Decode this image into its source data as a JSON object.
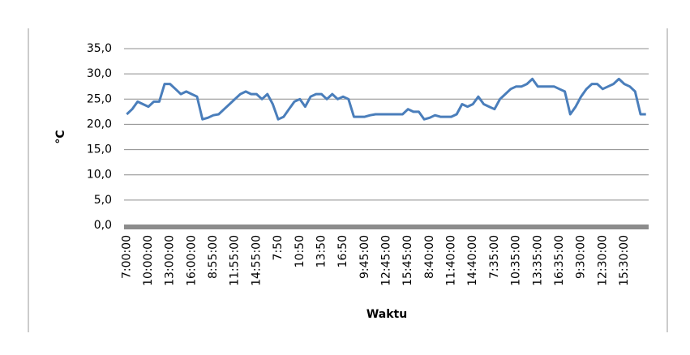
{
  "chart_data": {
    "type": "line",
    "y_label": "°C",
    "x_label": "Waktu",
    "categories": [
      "7:00:00",
      null,
      null,
      null,
      "10:00:00",
      null,
      null,
      null,
      "13:00:00",
      null,
      null,
      null,
      "16:00:00",
      null,
      null,
      null,
      "8:55:00",
      null,
      null,
      null,
      "11:55:00",
      null,
      null,
      null,
      "14:55:00",
      null,
      null,
      null,
      "7:50",
      null,
      null,
      null,
      "10:50",
      null,
      null,
      null,
      "13:50",
      null,
      null,
      null,
      "16:50",
      null,
      null,
      null,
      "9:45:00",
      null,
      null,
      null,
      "12:45:00",
      null,
      null,
      null,
      "15:45:00",
      null,
      null,
      null,
      "8:40:00",
      null,
      null,
      null,
      "11:40:00",
      null,
      null,
      null,
      "14:40:00",
      null,
      null,
      null,
      "7:35:00",
      null,
      null,
      null,
      "10:35:00",
      null,
      null,
      null,
      "13:35:00",
      null,
      null,
      null,
      "16:35:00",
      null,
      null,
      null,
      "9:30:00",
      null,
      null,
      null,
      "12:30:00",
      null,
      null,
      null,
      "15:30:00",
      null,
      null,
      null,
      null
    ],
    "values": [
      22,
      23,
      24.5,
      24,
      23.5,
      24.5,
      24.5,
      28,
      28,
      27,
      26,
      26.5,
      26,
      25.5,
      21,
      21.3,
      21.8,
      22,
      23,
      24,
      25,
      26,
      26.5,
      26,
      26,
      25,
      26,
      24,
      21,
      21.5,
      23,
      24.5,
      25,
      23.5,
      25.5,
      26,
      26,
      25,
      26,
      25,
      25.5,
      25,
      21.5,
      21.5,
      21.5,
      21.8,
      22,
      22,
      22,
      22,
      22,
      22,
      23,
      22.5,
      22.5,
      21,
      21.3,
      21.8,
      21.5,
      21.5,
      21.5,
      22,
      24,
      23.5,
      24,
      25.5,
      24,
      23.5,
      23,
      25,
      26,
      27,
      27.5,
      27.5,
      28,
      29,
      27.5,
      27.5,
      27.5,
      27.5,
      27,
      26.5,
      22,
      23.5,
      25.5,
      27,
      28,
      28,
      27,
      27.5,
      28,
      29,
      28,
      27.5,
      26.5,
      22,
      22
    ],
    "color": "#4a7ebb",
    "ylim": [
      0,
      35
    ],
    "yticks": [
      {
        "value": 0,
        "label": "0,0"
      },
      {
        "value": 5,
        "label": "5,0"
      },
      {
        "value": 10,
        "label": "10,0"
      },
      {
        "value": 15,
        "label": "15,0"
      },
      {
        "value": 20,
        "label": "20,0"
      },
      {
        "value": 25,
        "label": "25,0"
      },
      {
        "value": 30,
        "label": "30,0"
      },
      {
        "value": 35,
        "label": "35,0"
      }
    ],
    "grid": true
  }
}
